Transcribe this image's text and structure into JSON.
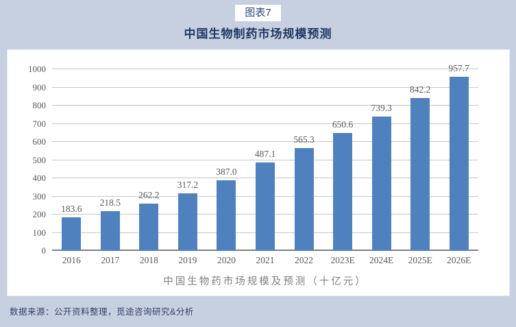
{
  "header": {
    "figure_tag": "图表7",
    "title": "中国生物制药市场规模预测"
  },
  "chart_data": {
    "type": "bar",
    "categories": [
      "2016",
      "2017",
      "2018",
      "2019",
      "2020",
      "2021",
      "2022",
      "2023E",
      "2024E",
      "2025E",
      "2026E"
    ],
    "values": [
      183.6,
      218.5,
      262.2,
      317.2,
      387.0,
      487.1,
      565.3,
      650.6,
      739.3,
      842.2,
      957.7
    ],
    "value_labels": [
      "183.6",
      "218.5",
      "262.2",
      "317.2",
      "387.0",
      "487.1",
      "565.3",
      "650.6",
      "739.3",
      "842.2",
      "957.7"
    ],
    "title": "中国生物药市场规模及预测（十亿元）",
    "xlabel": "",
    "ylabel": "",
    "ylim": [
      0,
      1000
    ],
    "yticks": [
      0,
      100,
      200,
      300,
      400,
      500,
      600,
      700,
      800,
      900,
      1000
    ],
    "grid": true,
    "legend": "none",
    "bar_color": "#4e81bd"
  },
  "footer": {
    "source": "数据来源：公开资料整理，觅途咨询研究&分析"
  },
  "colors": {
    "page_background": "#c7d0e1",
    "panel_background": "#ffffff",
    "bar": "#4e81bd",
    "gridline": "#c6c6c6",
    "axis_text": "#595959",
    "title_text": "#1f3864",
    "source_text": "#333f63"
  }
}
